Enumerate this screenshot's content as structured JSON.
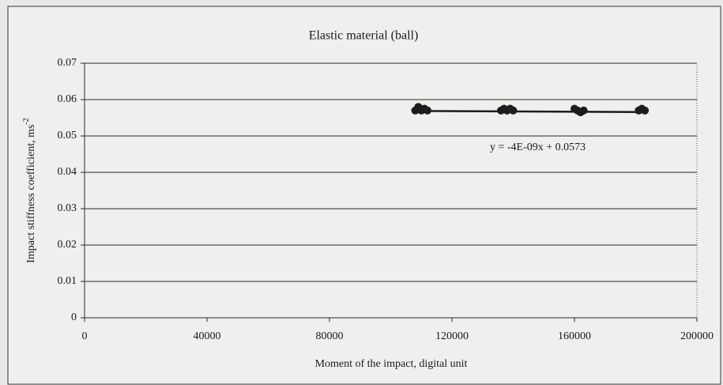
{
  "chart_data": {
    "type": "scatter",
    "title": "Elastic material (ball)",
    "x_label": "Moment of the impact, digital unit",
    "y_label": "Impact stiffness coefficient, ms",
    "y_label_superscript": "-2",
    "x": [
      108000,
      109000,
      110000,
      111000,
      112000,
      136000,
      137000,
      138000,
      139000,
      140000,
      160000,
      161000,
      162000,
      163000,
      181000,
      182000,
      183000
    ],
    "y": [
      0.057,
      0.058,
      0.057,
      0.0575,
      0.057,
      0.057,
      0.0575,
      0.057,
      0.0575,
      0.057,
      0.0575,
      0.057,
      0.0565,
      0.057,
      0.057,
      0.0575,
      0.057
    ],
    "color": "#1c1c1c",
    "trendline": {
      "slope": -4e-09,
      "intercept": 0.0573,
      "label": "y = -4E-09x + 0.0573"
    },
    "xlim": [
      0,
      200000
    ],
    "xticks": [
      0,
      40000,
      80000,
      120000,
      160000,
      200000
    ],
    "ylim": [
      0,
      0.07
    ],
    "yticks": [
      0,
      0.01,
      0.02,
      0.03,
      0.04,
      0.05,
      0.06,
      0.07
    ],
    "grid": true
  }
}
